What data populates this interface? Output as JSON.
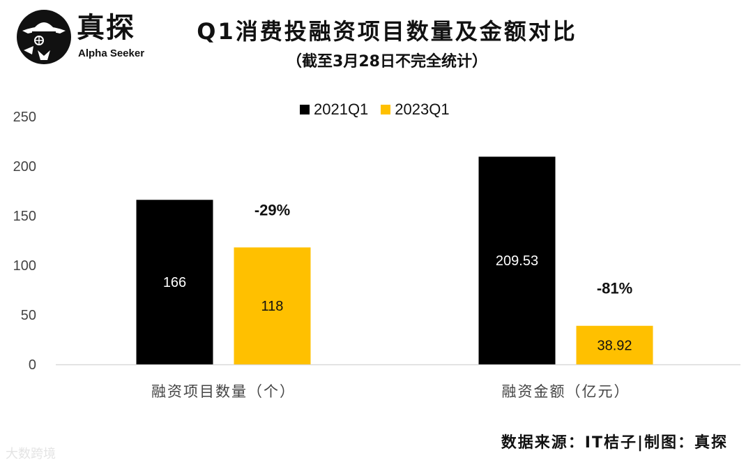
{
  "brand": {
    "name_cn": "真探",
    "name_en": "Alpha Seeker"
  },
  "title": "Q1消费投融资项目数量及金额对比",
  "subtitle": "（截至3月28日不完全统计）",
  "source": "数据来源：IT桔子|制图：真探",
  "watermark": "大数跨境",
  "colors": {
    "series_2021": "#000000",
    "series_2023": "#FFC000",
    "axis_line": "#d9d9d9"
  },
  "chart_data": {
    "type": "bar",
    "categories": [
      "融资项目数量（个）",
      "融资金额（亿元）"
    ],
    "series": [
      {
        "name": "2021Q1",
        "values": [
          166,
          209.53
        ],
        "labels": [
          "166",
          "209.53"
        ],
        "color": "#000000",
        "label_color": "#ffffff"
      },
      {
        "name": "2023Q1",
        "values": [
          118,
          38.92
        ],
        "labels": [
          "118",
          "38.92"
        ],
        "color": "#FFC000",
        "label_color": "#111111"
      }
    ],
    "changes": [
      "-29%",
      "-81%"
    ],
    "ylim": [
      0,
      250
    ],
    "yticks": [
      0,
      50,
      100,
      150,
      200,
      250
    ],
    "grid": false,
    "legend": "top-center"
  }
}
